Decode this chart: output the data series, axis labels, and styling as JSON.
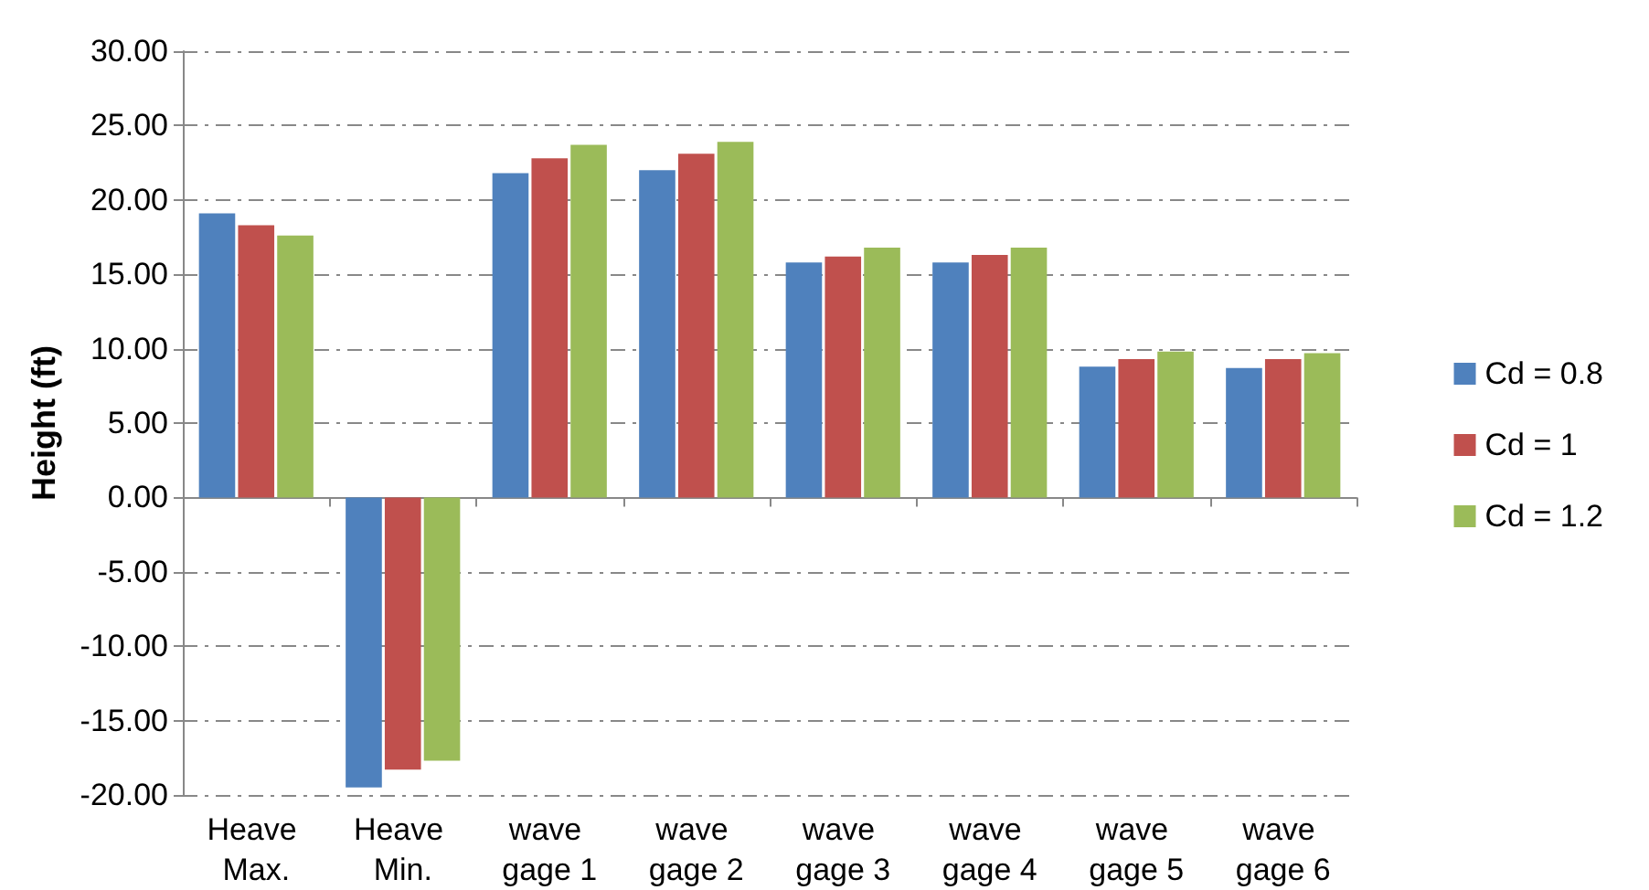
{
  "chart_data": {
    "type": "bar",
    "ylabel": "Height (ft)",
    "categories": [
      "Heave Max.",
      "Heave Min.",
      "wave gage 1",
      "wave gage 2",
      "wave gage 3",
      "wave gage 4",
      "wave gage 5",
      "wave gage 6"
    ],
    "series": [
      {
        "name": "Cd = 0.8",
        "color": "#4f81bd",
        "values": [
          19.1,
          -19.5,
          21.8,
          22.0,
          15.8,
          15.8,
          8.8,
          8.7
        ]
      },
      {
        "name": "Cd = 1",
        "color": "#c0504d",
        "values": [
          18.3,
          -18.3,
          22.8,
          23.1,
          16.2,
          16.3,
          9.3,
          9.3
        ]
      },
      {
        "name": "Cd = 1.2",
        "color": "#9bbb59",
        "values": [
          17.6,
          -17.7,
          23.7,
          23.9,
          16.8,
          16.8,
          9.8,
          9.7
        ]
      }
    ],
    "ylim": [
      -20,
      30
    ],
    "yticks": [
      {
        "value": -20,
        "label": "-20.00"
      },
      {
        "value": -15,
        "label": "-15.00"
      },
      {
        "value": -10,
        "label": "-10.00"
      },
      {
        "value": -5,
        "label": "-5.00"
      },
      {
        "value": 0,
        "label": "0.00"
      },
      {
        "value": 5,
        "label": "5.00"
      },
      {
        "value": 10,
        "label": "10.00"
      },
      {
        "value": 15,
        "label": "15.00"
      },
      {
        "value": 20,
        "label": "20.00"
      },
      {
        "value": 25,
        "label": "25.00"
      },
      {
        "value": 30,
        "label": "30.00"
      }
    ],
    "grid": "y",
    "legend": "right"
  }
}
